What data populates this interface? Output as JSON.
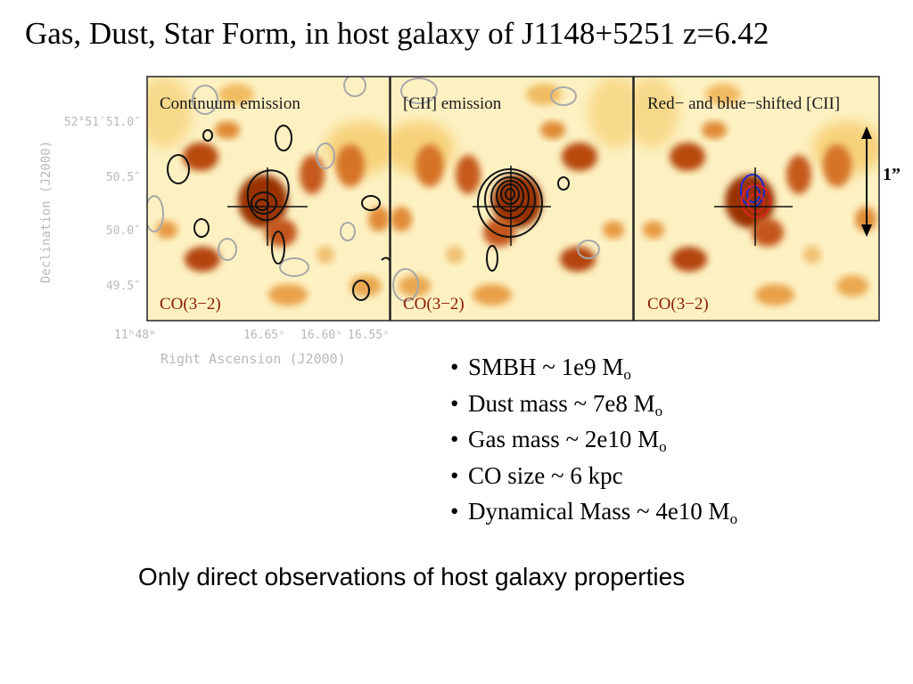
{
  "title": "Gas, Dust, Star Form, in host galaxy of J1148+5251 z=6.42",
  "figure": {
    "panels": [
      {
        "label": "Continuum emission",
        "tracer": "CO(3−2)"
      },
      {
        "label": "[CII] emission",
        "tracer": "CO(3−2)"
      },
      {
        "label": "Red− and blue−shifted [CII]",
        "tracer": "CO(3−2)"
      }
    ],
    "y_ticks": [
      "52°51′51.0″",
      "50.5″",
      "50.0″",
      "49.5″"
    ],
    "x_ticks": [
      "11ʰ48ᵐ",
      "16.65ˢ",
      "16.60ˢ",
      "16.55ˢ"
    ],
    "ylabel": "Declination (J2000)",
    "xlabel": "Right Ascension (J2000)",
    "scale_bar_label": "1”",
    "colors": {
      "map_light": "#fdf3c6",
      "map_mid": "#eaa04a",
      "map_dark": "#8f2d05",
      "contour_black": "#111111",
      "contour_grey": "#a8a8a8",
      "contour_red": "#dd2222",
      "contour_blue": "#1a2ad8"
    }
  },
  "bullets": [
    {
      "text": "SMBH ~ 1e9 M",
      "sub": "o"
    },
    {
      "text": "Dust mass ~ 7e8 M",
      "sub": "o"
    },
    {
      "text": "Gas mass ~ 2e10 M",
      "sub": "o"
    },
    {
      "text": "CO size ~ 6 kpc",
      "sub": ""
    },
    {
      "text": "Dynamical Mass ~ 4e10 M",
      "sub": "o"
    }
  ],
  "caption": "Only direct observations of host galaxy properties"
}
